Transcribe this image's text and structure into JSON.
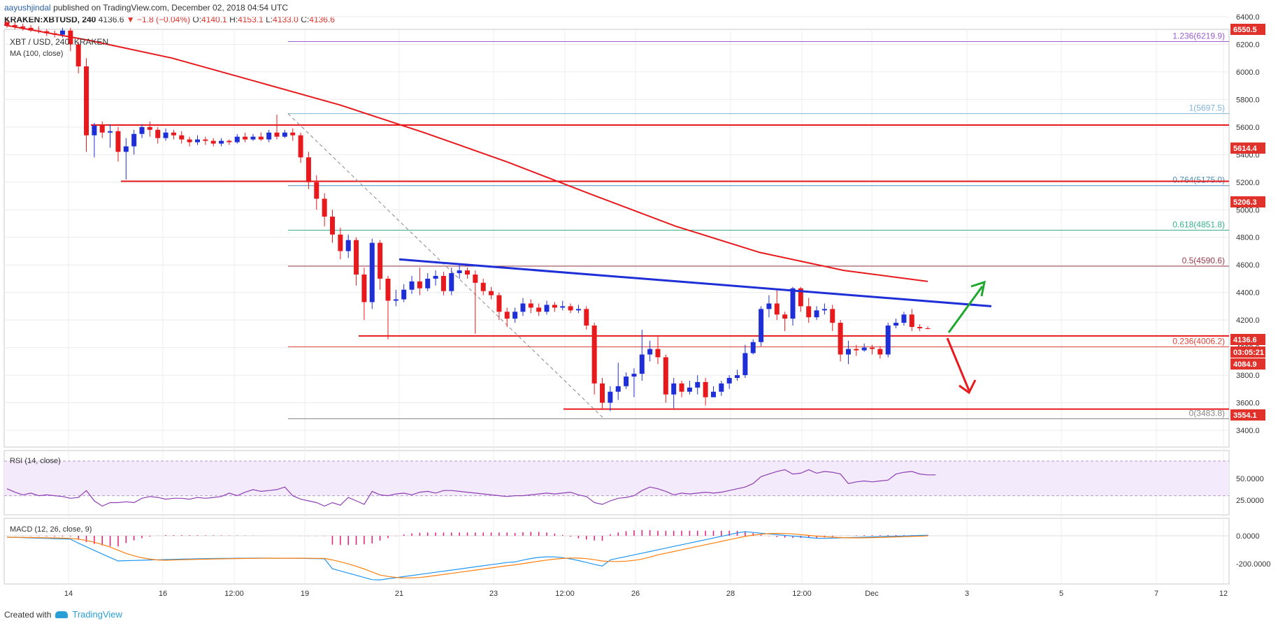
{
  "header": {
    "author": "aayushjindal",
    "published": "published on TradingView.com, December 02, 2018 04:54 UTC",
    "symbol": "KRAKEN:XBTUSD, 240",
    "last": "4136.6",
    "change": "▼ −1.8 (−0.04%)",
    "o_label": "O:",
    "o": "4140.1",
    "h_label": "H:",
    "h": "4153.1",
    "l_label": "L:",
    "l": "4133.0",
    "c_label": "C:",
    "c": "4136.6"
  },
  "footer": {
    "created": "Created with",
    "brand": "TradingView"
  },
  "chart_data": {
    "type": "candlestick",
    "title": "XBT / USD, 240, KRAKEN",
    "ma_label": "MA (100, close)",
    "y_ticks": [
      "6400.0",
      "6200.0",
      "6000.0",
      "5800.0",
      "5600.0",
      "5400.0",
      "5200.0",
      "5000.0",
      "4800.0",
      "4600.0",
      "4400.0",
      "4200.0",
      "4000.0",
      "3800.0",
      "3600.0",
      "3400.0"
    ],
    "x_ticks": [
      "14",
      "16",
      "12:00",
      "19",
      "21",
      "23",
      "12:00",
      "26",
      "28",
      "12:00",
      "Dec",
      "3",
      "5",
      "7",
      "12"
    ],
    "fib_levels": [
      {
        "label": "1.236(6219.9)",
        "value": 6219.9,
        "color": "#9c5fd1"
      },
      {
        "label": "1(5697.5)",
        "value": 5697.5,
        "color": "#7fb4d8"
      },
      {
        "label": "0.764(5175.0)",
        "value": 5175.0,
        "color": "#4f8fb8"
      },
      {
        "label": "0.618(4851.8)",
        "value": 4851.8,
        "color": "#37b08a"
      },
      {
        "label": "0.5(4590.6)",
        "value": 4590.6,
        "color": "#9a3a4a"
      },
      {
        "label": "0.236(4006.2)",
        "value": 4006.2,
        "color": "#e0453a"
      },
      {
        "label": "0(3483.8)",
        "value": 3483.8,
        "color": "#888888"
      }
    ],
    "horizontal_levels": [
      5614.4,
      5206.3,
      4084.9,
      3554.1
    ],
    "price_badges": [
      {
        "label": "6550.5",
        "color": "#e0312a"
      },
      {
        "label": "5614.4",
        "color": "#e0312a"
      },
      {
        "label": "5206.3",
        "color": "#e0312a"
      },
      {
        "label": "4136.6",
        "color": "#e0312a"
      },
      {
        "label": "03:05:21",
        "color": "#e0312a"
      },
      {
        "label": "4084.9",
        "color": "#e0312a"
      },
      {
        "label": "3554.1",
        "color": "#e0312a"
      }
    ],
    "trendline": {
      "from": 4640,
      "to": 4300,
      "color": "#1f2fd8"
    },
    "candles": [
      [
        6360,
        6340,
        6380,
        6320
      ],
      [
        6340,
        6330,
        6360,
        6310
      ],
      [
        6330,
        6320,
        6350,
        6300
      ],
      [
        6320,
        6300,
        6340,
        6290
      ],
      [
        6300,
        6295,
        6330,
        6280
      ],
      [
        6295,
        6280,
        6310,
        6260
      ],
      [
        6280,
        6270,
        6300,
        6250
      ],
      [
        6270,
        6300,
        6320,
        6250
      ],
      [
        6300,
        6200,
        6320,
        6150
      ],
      [
        6200,
        6040,
        6220,
        5990
      ],
      [
        6040,
        5540,
        6100,
        5420
      ],
      [
        5540,
        5610,
        5630,
        5380
      ],
      [
        5610,
        5560,
        5640,
        5520
      ],
      [
        5560,
        5570,
        5620,
        5450
      ],
      [
        5570,
        5420,
        5600,
        5350
      ],
      [
        5420,
        5460,
        5520,
        5220
      ],
      [
        5460,
        5550,
        5580,
        5400
      ],
      [
        5550,
        5600,
        5620,
        5520
      ],
      [
        5600,
        5580,
        5640,
        5530
      ],
      [
        5580,
        5520,
        5600,
        5480
      ],
      [
        5520,
        5560,
        5590,
        5500
      ],
      [
        5560,
        5540,
        5580,
        5510
      ],
      [
        5540,
        5510,
        5570,
        5480
      ],
      [
        5510,
        5490,
        5530,
        5460
      ],
      [
        5490,
        5510,
        5540,
        5470
      ],
      [
        5510,
        5500,
        5530,
        5470
      ],
      [
        5500,
        5480,
        5520,
        5460
      ],
      [
        5480,
        5500,
        5520,
        5460
      ],
      [
        5500,
        5490,
        5510,
        5470
      ],
      [
        5490,
        5530,
        5550,
        5480
      ],
      [
        5530,
        5510,
        5560,
        5490
      ],
      [
        5510,
        5530,
        5550,
        5500
      ],
      [
        5530,
        5510,
        5560,
        5500
      ],
      [
        5510,
        5560,
        5580,
        5490
      ],
      [
        5560,
        5530,
        5690,
        5510
      ],
      [
        5530,
        5560,
        5580,
        5520
      ],
      [
        5560,
        5540,
        5590,
        5500
      ],
      [
        5540,
        5380,
        5560,
        5340
      ],
      [
        5380,
        5200,
        5420,
        5150
      ],
      [
        5200,
        5080,
        5250,
        5000
      ],
      [
        5080,
        4950,
        5120,
        4880
      ],
      [
        4950,
        4820,
        5000,
        4760
      ],
      [
        4820,
        4700,
        4870,
        4640
      ],
      [
        4700,
        4780,
        4820,
        4650
      ],
      [
        4780,
        4530,
        4800,
        4450
      ],
      [
        4530,
        4330,
        4580,
        4200
      ],
      [
        4330,
        4760,
        4790,
        4280
      ],
      [
        4760,
        4500,
        4780,
        4420
      ],
      [
        4500,
        4340,
        4520,
        4060
      ],
      [
        4340,
        4350,
        4420,
        4300
      ],
      [
        4350,
        4420,
        4460,
        4330
      ],
      [
        4420,
        4480,
        4520,
        4390
      ],
      [
        4480,
        4430,
        4580,
        4380
      ],
      [
        4430,
        4500,
        4540,
        4410
      ],
      [
        4500,
        4520,
        4560,
        4450
      ],
      [
        4520,
        4410,
        4550,
        4380
      ],
      [
        4410,
        4540,
        4580,
        4380
      ],
      [
        4540,
        4560,
        4600,
        4500
      ],
      [
        4560,
        4530,
        4580,
        4500
      ],
      [
        4530,
        4470,
        4560,
        4100
      ],
      [
        4470,
        4410,
        4500,
        4380
      ],
      [
        4410,
        4380,
        4440,
        4350
      ],
      [
        4380,
        4260,
        4400,
        4200
      ],
      [
        4260,
        4210,
        4290,
        4150
      ],
      [
        4210,
        4260,
        4290,
        4180
      ],
      [
        4260,
        4320,
        4360,
        4230
      ],
      [
        4320,
        4290,
        4350,
        4250
      ],
      [
        4290,
        4260,
        4320,
        4230
      ],
      [
        4260,
        4310,
        4340,
        4240
      ],
      [
        4310,
        4290,
        4330,
        4260
      ],
      [
        4290,
        4300,
        4340,
        4270
      ],
      [
        4300,
        4270,
        4320,
        4250
      ],
      [
        4270,
        4280,
        4310,
        4250
      ],
      [
        4280,
        4160,
        4300,
        4130
      ],
      [
        4160,
        3740,
        4180,
        3660
      ],
      [
        3740,
        3600,
        3780,
        3560
      ],
      [
        3600,
        3680,
        3720,
        3540
      ],
      [
        3680,
        3720,
        3890,
        3620
      ],
      [
        3720,
        3790,
        3820,
        3700
      ],
      [
        3790,
        3810,
        3850,
        3640
      ],
      [
        3810,
        3950,
        4130,
        3760
      ],
      [
        3950,
        3990,
        4050,
        3900
      ],
      [
        3990,
        3930,
        4080,
        3880
      ],
      [
        3930,
        3660,
        3950,
        3600
      ],
      [
        3660,
        3740,
        3780,
        3560
      ],
      [
        3740,
        3680,
        3760,
        3640
      ],
      [
        3680,
        3710,
        3760,
        3660
      ],
      [
        3710,
        3750,
        3800,
        3660
      ],
      [
        3750,
        3640,
        3780,
        3580
      ],
      [
        3640,
        3680,
        3720,
        3640
      ],
      [
        3680,
        3740,
        3760,
        3650
      ],
      [
        3740,
        3780,
        3800,
        3700
      ],
      [
        3780,
        3800,
        3840,
        3760
      ],
      [
        3800,
        3960,
        4020,
        3780
      ],
      [
        3960,
        4040,
        4060,
        3950
      ],
      [
        4040,
        4280,
        4300,
        4010
      ],
      [
        4280,
        4320,
        4380,
        4220
      ],
      [
        4320,
        4240,
        4420,
        4200
      ],
      [
        4240,
        4210,
        4260,
        4120
      ],
      [
        4210,
        4430,
        4440,
        4160
      ],
      [
        4430,
        4300,
        4440,
        4260
      ],
      [
        4300,
        4220,
        4360,
        4180
      ],
      [
        4220,
        4270,
        4300,
        4200
      ],
      [
        4270,
        4280,
        4320,
        4240
      ],
      [
        4280,
        4180,
        4310,
        4120
      ],
      [
        4180,
        3950,
        4200,
        3900
      ],
      [
        3950,
        3990,
        4050,
        3880
      ],
      [
        3990,
        3980,
        4020,
        3940
      ],
      [
        3980,
        4000,
        4030,
        3970
      ],
      [
        4000,
        3990,
        4020,
        3950
      ],
      [
        3990,
        3950,
        4010,
        3920
      ],
      [
        3950,
        4160,
        4180,
        3930
      ],
      [
        4160,
        4180,
        4210,
        4140
      ],
      [
        4180,
        4240,
        4260,
        4160
      ],
      [
        4240,
        4150,
        4280,
        4120
      ],
      [
        4150,
        4140,
        4170,
        4120
      ],
      [
        4140,
        4137,
        4153,
        4133
      ]
    ],
    "ma_series": [
      6340,
      6230,
      6100,
      5930,
      5760,
      5560,
      5345,
      5110,
      4880,
      4690,
      4560,
      4480
    ],
    "rsi": {
      "label": "RSI (14, close)",
      "y_ticks": [
        "50.0000",
        "25.0000"
      ],
      "values": [
        38,
        34,
        31,
        33,
        30,
        31,
        30,
        29,
        27,
        28,
        36,
        24,
        18,
        22,
        22,
        23,
        22,
        27,
        29,
        28,
        26,
        27,
        27,
        26,
        28,
        27,
        28,
        29,
        33,
        30,
        34,
        37,
        35,
        36,
        37,
        40,
        30,
        26,
        24,
        22,
        18,
        22,
        19,
        28,
        24,
        20,
        35,
        31,
        30,
        32,
        33,
        31,
        34,
        35,
        33,
        36,
        36,
        35,
        34,
        33,
        32,
        31,
        30,
        29,
        30,
        30,
        31,
        32,
        33,
        32,
        33,
        34,
        31,
        29,
        22,
        20,
        24,
        27,
        28,
        30,
        36,
        40,
        38,
        35,
        31,
        33,
        32,
        33,
        34,
        33,
        34,
        36,
        38,
        40,
        44,
        52,
        55,
        58,
        60,
        55,
        56,
        60,
        56,
        58,
        57,
        55,
        44,
        46,
        47,
        46,
        47,
        48,
        55,
        57,
        58,
        55,
        54,
        54
      ]
    },
    "macd": {
      "label": "MACD (12, 26, close, 9)",
      "y_ticks": [
        "0.0000",
        "-200.0000"
      ]
    }
  }
}
